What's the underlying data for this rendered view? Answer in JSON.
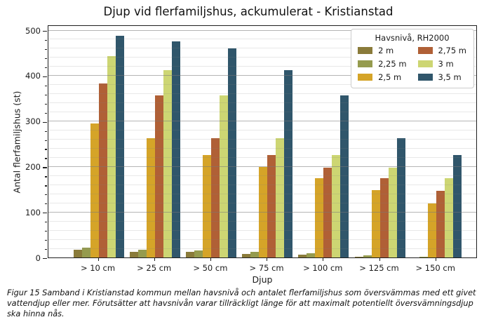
{
  "figure": {
    "caption": "Figur 15 Samband i Kristianstad kommun mellan havsnivå och antalet flerfamiljshus som översvämmas med ett givet vattendjup eller mer. Förutsätter att havsnivån varar tillräckligt länge för att maximalt potentiellt översvämningsdjup ska hinna nås."
  },
  "chart_data": {
    "type": "bar",
    "title": "Djup vid flerfamiljshus, ackumulerat - Kristianstad",
    "xlabel": "Djup",
    "ylabel": "Antal flerfamiljshus (st)",
    "ylim": [
      0,
      500
    ],
    "yticks": [
      0,
      100,
      200,
      300,
      400,
      500
    ],
    "minor_grid_step": 20,
    "grid": true,
    "gridlines_over_bars": true,
    "legend_title": "Havsnivå, RH2000",
    "legend_position": "upper right",
    "legend_columns": 2,
    "categories": [
      "> 10 cm",
      "> 25 cm",
      "> 50 cm",
      "> 75 cm",
      "> 100 cm",
      "> 125 cm",
      "> 150 cm"
    ],
    "series": [
      {
        "name": "2 m",
        "color": "#8a7b3a",
        "values": [
          17,
          13,
          12,
          8,
          6,
          1,
          0
        ]
      },
      {
        "name": "2,25 m",
        "color": "#959b4e",
        "values": [
          21,
          17,
          15,
          12,
          9,
          4,
          1
        ]
      },
      {
        "name": "2,5 m",
        "color": "#d5a428",
        "values": [
          295,
          263,
          226,
          199,
          174,
          148,
          119
        ]
      },
      {
        "name": "2,75 m",
        "color": "#b06036",
        "values": [
          383,
          357,
          262,
          226,
          198,
          174,
          147
        ]
      },
      {
        "name": "3 m",
        "color": "#cdd673",
        "values": [
          443,
          412,
          357,
          262,
          226,
          198,
          174
        ]
      },
      {
        "name": "3,5 m",
        "color": "#30566b",
        "values": [
          487,
          475,
          460,
          412,
          357,
          262,
          226
        ]
      }
    ]
  }
}
